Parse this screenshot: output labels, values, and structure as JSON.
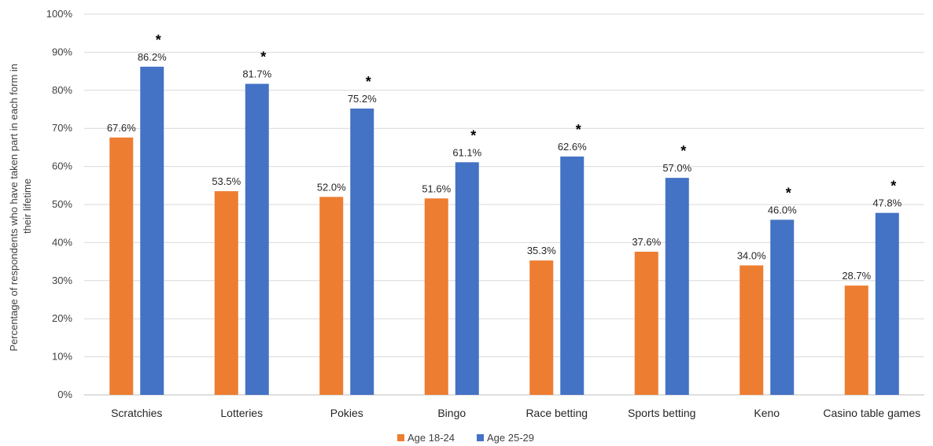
{
  "chart_data": {
    "type": "bar",
    "categories": [
      "Scratchies",
      "Lotteries",
      "Pokies",
      "Bingo",
      "Race betting",
      "Sports betting",
      "Keno",
      "Casino table games"
    ],
    "series": [
      {
        "name": "Age 18-24",
        "color": "#ED7D31",
        "values": [
          67.6,
          53.5,
          52.0,
          51.6,
          35.3,
          37.6,
          34.0,
          28.7
        ],
        "labels": [
          "67.6%",
          "53.5%",
          "52.0%",
          "51.6%",
          "35.3%",
          "37.6%",
          "34.0%",
          "28.7%"
        ]
      },
      {
        "name": "Age 25-29",
        "color": "#4472C4",
        "values": [
          86.2,
          81.7,
          75.2,
          61.1,
          62.6,
          57.0,
          46.0,
          47.8
        ],
        "labels": [
          "86.2%",
          "81.7%",
          "75.2%",
          "61.1%",
          "62.6%",
          "57.0%",
          "46.0%",
          "47.8%"
        ]
      }
    ],
    "significance_marker": "*",
    "ylabel_lines": [
      "Percentage of respondents who have taken part in each form in",
      "their lifetime"
    ],
    "xlabel": "",
    "ylim": [
      0,
      100
    ],
    "yticks": [
      "0%",
      "10%",
      "20%",
      "30%",
      "40%",
      "50%",
      "60%",
      "70%",
      "80%",
      "90%",
      "100%"
    ],
    "grid": true,
    "legend_position": "bottom"
  }
}
